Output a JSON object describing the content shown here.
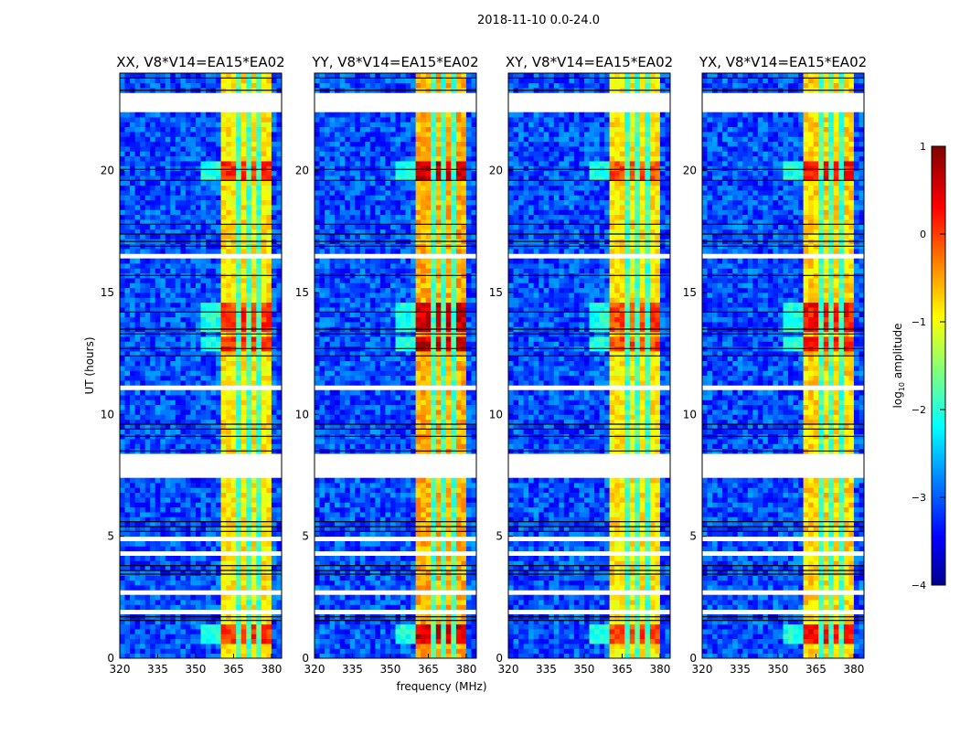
{
  "chart_data": {
    "type": "heatmap",
    "suptitle": "2018-11-10 0.0-24.0",
    "xlabel": "frequency (MHz)",
    "ylabel": "UT (hours)",
    "xlim": [
      320,
      384
    ],
    "ylim": [
      0,
      24
    ],
    "xticks": [
      320,
      335,
      350,
      365,
      380
    ],
    "yticks": [
      0,
      5,
      10,
      15,
      20
    ],
    "colormap": "jet",
    "colorbar": {
      "label_main": "log",
      "label_sub": "10",
      "label_tail": " amplitude",
      "range": [
        -4,
        1
      ],
      "ticks": [
        "1",
        "0",
        "−1",
        "−2",
        "−3",
        "−4"
      ],
      "tick_values": [
        1,
        0,
        -1,
        -2,
        -3,
        -4
      ]
    },
    "panels": [
      {
        "title": "XX, V8*V14=EA15*EA02",
        "band_level": -0.9,
        "hot_boost": 0.9
      },
      {
        "title": "YY, V8*V14=EA15*EA02",
        "band_level": -0.6,
        "hot_boost": 1.1
      },
      {
        "title": "XY, V8*V14=EA15*EA02",
        "band_level": -0.9,
        "hot_boost": 0.8
      },
      {
        "title": "YX, V8*V14=EA15*EA02",
        "band_level": -0.8,
        "hot_boost": 1.0
      }
    ],
    "background_level": -3.0,
    "rfi_band_mhz": [
      360,
      379.5
    ],
    "rfi_channel_gaps_mhz": [
      366.3,
      370.6,
      375.0
    ],
    "hot_time_ranges_hours": [
      [
        0.6,
        1.5
      ],
      [
        13.4,
        14.5
      ],
      [
        19.6,
        20.4
      ],
      [
        12.5,
        13.1
      ]
    ],
    "flagged_time_ranges_hours": [
      [
        22.4,
        23.1
      ],
      [
        7.4,
        8.4
      ],
      [
        1.85,
        2.05
      ],
      [
        23.5,
        23.6
      ],
      [
        20.5,
        20.65
      ],
      [
        16.3,
        16.5
      ],
      [
        10.3,
        10.45
      ],
      [
        4.9,
        5.0
      ],
      [
        21.3,
        21.4
      ],
      [
        18.9,
        19.0
      ],
      [
        15.9,
        16.0
      ],
      [
        11.0,
        11.1
      ],
      [
        2.7,
        2.8
      ],
      [
        4.3,
        4.4
      ]
    ],
    "black_line_times_hours": [
      23.8,
      23.3,
      20.05,
      19.6,
      17.8,
      17.4,
      17.1,
      16.9,
      15.7,
      14.2,
      13.5,
      13.3,
      12.7,
      12.4,
      9.6,
      9.4,
      9.1,
      8.5,
      5.6,
      5.4,
      5.2,
      3.8,
      3.6,
      3.45,
      1.7,
      1.55
    ]
  }
}
